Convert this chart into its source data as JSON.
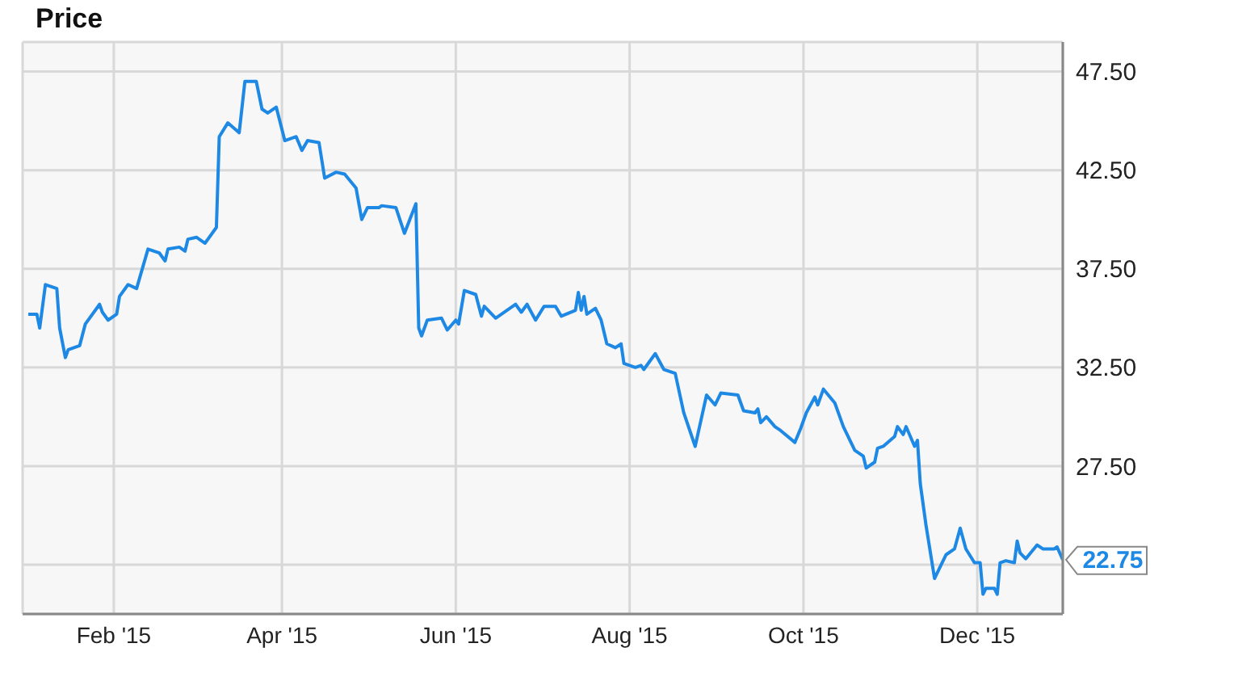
{
  "chart_data": {
    "type": "line",
    "title": "Price",
    "x": [
      "2015-01-02",
      "2015-01-05",
      "2015-01-06",
      "2015-01-08",
      "2015-01-12",
      "2015-01-13",
      "2015-01-15",
      "2015-01-16",
      "2015-01-20",
      "2015-01-22",
      "2015-01-27",
      "2015-01-28",
      "2015-01-30",
      "2015-02-02",
      "2015-02-03",
      "2015-02-06",
      "2015-02-09",
      "2015-02-13",
      "2015-02-17",
      "2015-02-19",
      "2015-02-20",
      "2015-02-24",
      "2015-02-26",
      "2015-02-27",
      "2015-03-02",
      "2015-03-05",
      "2015-03-09",
      "2015-03-10",
      "2015-03-13",
      "2015-03-17",
      "2015-03-19",
      "2015-03-23",
      "2015-03-25",
      "2015-03-27",
      "2015-03-30",
      "2015-04-02",
      "2015-04-06",
      "2015-04-08",
      "2015-04-10",
      "2015-04-14",
      "2015-04-16",
      "2015-04-20",
      "2015-04-23",
      "2015-04-27",
      "2015-04-29",
      "2015-05-01",
      "2015-05-05",
      "2015-05-06",
      "2015-05-11",
      "2015-05-14",
      "2015-05-18",
      "2015-05-19",
      "2015-05-20",
      "2015-05-22",
      "2015-05-27",
      "2015-05-29",
      "2015-06-01",
      "2015-06-02",
      "2015-06-04",
      "2015-06-08",
      "2015-06-10",
      "2015-06-11",
      "2015-06-15",
      "2015-06-22",
      "2015-06-24",
      "2015-06-26",
      "2015-06-29",
      "2015-07-02",
      "2015-07-06",
      "2015-07-08",
      "2015-07-13",
      "2015-07-14",
      "2015-07-15",
      "2015-07-16",
      "2015-07-17",
      "2015-07-20",
      "2015-07-22",
      "2015-07-24",
      "2015-07-27",
      "2015-07-29",
      "2015-07-30",
      "2015-08-03",
      "2015-08-05",
      "2015-08-06",
      "2015-08-10",
      "2015-08-13",
      "2015-08-17",
      "2015-08-20",
      "2015-08-24",
      "2015-08-28",
      "2015-08-31",
      "2015-09-02",
      "2015-09-08",
      "2015-09-10",
      "2015-09-14",
      "2015-09-15",
      "2015-09-16",
      "2015-09-18",
      "2015-09-21",
      "2015-09-23",
      "2015-09-28",
      "2015-09-30",
      "2015-10-02",
      "2015-10-05",
      "2015-10-06",
      "2015-10-08",
      "2015-10-12",
      "2015-10-15",
      "2015-10-19",
      "2015-10-22",
      "2015-10-23",
      "2015-10-26",
      "2015-10-27",
      "2015-10-29",
      "2015-11-02",
      "2015-11-03",
      "2015-11-05",
      "2015-11-06",
      "2015-11-09",
      "2015-11-10",
      "2015-11-11",
      "2015-11-13",
      "2015-11-16",
      "2015-11-18",
      "2015-11-20",
      "2015-11-23",
      "2015-11-25",
      "2015-11-27",
      "2015-11-30",
      "2015-12-02",
      "2015-12-03",
      "2015-12-04",
      "2015-12-07",
      "2015-12-08",
      "2015-12-09",
      "2015-12-11",
      "2015-12-14",
      "2015-12-15",
      "2015-12-16",
      "2015-12-18",
      "2015-12-22",
      "2015-12-24",
      "2015-12-28",
      "2015-12-29",
      "2015-12-31"
    ],
    "series": [
      {
        "color": "#1e88e5",
        "values": [
          35.2,
          35.2,
          34.5,
          36.7,
          36.5,
          34.5,
          33.0,
          33.4,
          33.6,
          34.7,
          35.7,
          35.3,
          34.9,
          35.2,
          36.1,
          36.7,
          36.5,
          38.5,
          38.3,
          37.9,
          38.5,
          38.6,
          38.4,
          39.0,
          39.1,
          38.8,
          39.6,
          44.2,
          44.9,
          44.4,
          47.0,
          47.0,
          45.6,
          45.4,
          45.7,
          44.0,
          44.2,
          43.5,
          44.0,
          43.9,
          42.1,
          42.4,
          42.3,
          41.6,
          40.0,
          40.6,
          40.6,
          40.7,
          40.6,
          39.3,
          40.8,
          34.5,
          34.1,
          34.9,
          35.0,
          34.4,
          34.9,
          34.7,
          36.4,
          36.2,
          35.1,
          35.6,
          35.0,
          35.7,
          35.3,
          35.7,
          34.9,
          35.6,
          35.6,
          35.1,
          35.4,
          36.3,
          35.4,
          36.1,
          35.2,
          35.5,
          34.9,
          33.7,
          33.5,
          33.7,
          32.7,
          32.5,
          32.6,
          32.4,
          33.2,
          32.4,
          32.2,
          30.2,
          28.5,
          31.1,
          30.6,
          31.2,
          31.1,
          30.3,
          30.2,
          30.4,
          29.7,
          30.0,
          29.5,
          29.3,
          28.7,
          29.4,
          30.2,
          31.0,
          30.6,
          31.4,
          30.7,
          29.5,
          28.3,
          28.0,
          27.4,
          27.7,
          28.4,
          28.5,
          29.0,
          29.5,
          29.1,
          29.5,
          28.5,
          28.8,
          26.6,
          24.5,
          21.8,
          22.4,
          23.0,
          23.3,
          24.35,
          23.3,
          22.6,
          22.6,
          21.0,
          21.3,
          21.3,
          21.0,
          22.6,
          22.7,
          22.6,
          23.7,
          23.1,
          22.8,
          23.5,
          23.3,
          23.3,
          23.4,
          22.75
        ]
      }
    ],
    "xlim": [
      "2014-12-31",
      "2015-12-31"
    ],
    "xticks": [
      {
        "value": "2015-02-01",
        "label": "Feb '15"
      },
      {
        "value": "2015-04-01",
        "label": "Apr '15"
      },
      {
        "value": "2015-06-01",
        "label": "Jun '15"
      },
      {
        "value": "2015-08-01",
        "label": "Aug '15"
      },
      {
        "value": "2015-10-01",
        "label": "Oct '15"
      },
      {
        "value": "2015-12-01",
        "label": "Dec '15"
      }
    ],
    "ylim": [
      20,
      49
    ],
    "yticks": [
      {
        "value": 22.5,
        "label": null
      },
      {
        "value": 27.5,
        "label": "27.50"
      },
      {
        "value": 32.5,
        "label": "32.50"
      },
      {
        "value": 37.5,
        "label": "37.50"
      },
      {
        "value": 42.5,
        "label": "42.50"
      },
      {
        "value": 47.5,
        "label": "47.50"
      }
    ],
    "annotations": [
      {
        "text": "22.75",
        "x": "2015-12-31",
        "y": 22.75
      }
    ],
    "grid": true,
    "legend": false,
    "marker": "none",
    "line_style": "solid"
  }
}
